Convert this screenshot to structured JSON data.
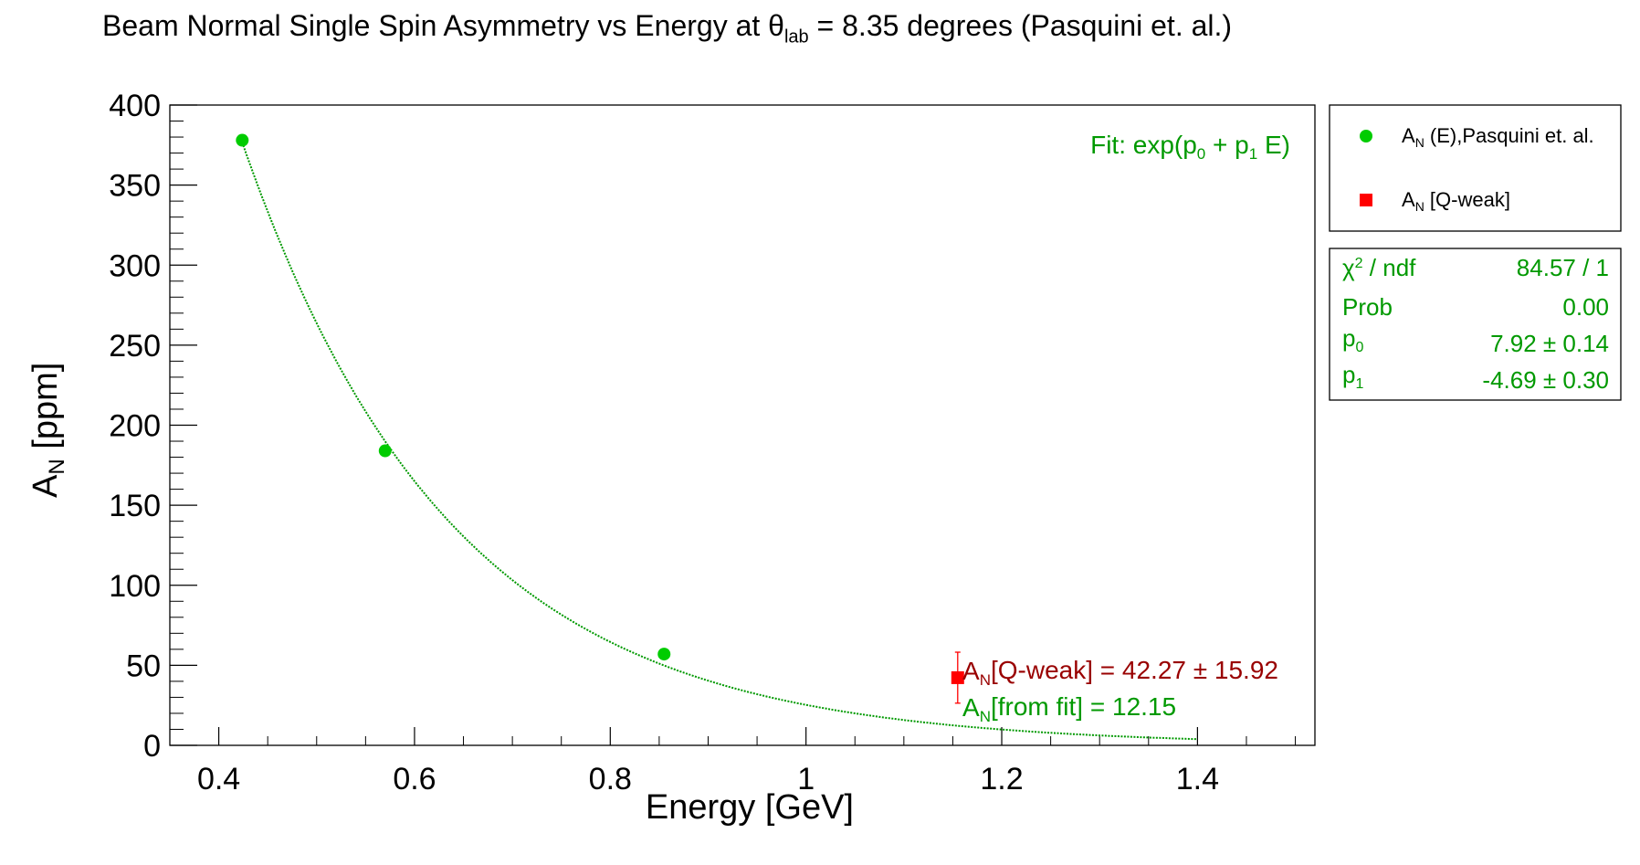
{
  "chart_data": {
    "type": "scatter",
    "title": "Beam Normal Single Spin Asymmetry vs Energy at θlab = 8.35 degrees (Pasquini et. al.)",
    "title_parts": {
      "pre": "Beam Normal Single Spin Asymmetry vs Energy at θ",
      "sub": "lab",
      "post": " = 8.35 degrees (Pasquini et. al.)"
    },
    "xlabel": "Energy [GeV]",
    "ylabel": {
      "main": "A",
      "sub": "N",
      "rest": " [ppm]"
    },
    "xlim": [
      0.35,
      1.52
    ],
    "ylim": [
      0,
      400
    ],
    "x_ticks": [
      0.4,
      0.6,
      0.8,
      1,
      1.2,
      1.4
    ],
    "x_tick_labels": [
      "0.4",
      "0.6",
      "0.8",
      "1",
      "1.2",
      "1.4"
    ],
    "y_ticks": [
      0,
      50,
      100,
      150,
      200,
      250,
      300,
      350,
      400
    ],
    "y_tick_labels": [
      "0",
      "50",
      "100",
      "150",
      "200",
      "250",
      "300",
      "350",
      "400"
    ],
    "grid": false,
    "series": [
      {
        "name": "AN (E),Pasquini et. al.",
        "color": "#00cc00",
        "marker": "circle",
        "points": [
          {
            "x": 0.424,
            "y": 378
          },
          {
            "x": 0.57,
            "y": 184
          },
          {
            "x": 0.855,
            "y": 57
          }
        ]
      },
      {
        "name": "AN [Q-weak]",
        "color": "#ff0000",
        "marker": "square",
        "points": [
          {
            "x": 1.155,
            "y": 42.27,
            "err": 15.92
          }
        ]
      }
    ],
    "fit": {
      "label": "Fit: exp(p0 + p1 E)",
      "label_parts": [
        "Fit: exp(p",
        "0",
        " + p",
        "1",
        " E)"
      ],
      "color": "#009900",
      "p0": 7.92,
      "p1": -4.69,
      "x_range": [
        0.424,
        1.4
      ]
    },
    "legend": {
      "placement": "top-right-outside",
      "entries": [
        {
          "pre": "A",
          "sub": "N",
          "post": " (E),Pasquini et. al.",
          "color": "#00cc00",
          "marker": "circle"
        },
        {
          "pre": "A",
          "sub": "N",
          "post": " [Q-weak]",
          "color": "#ff0000",
          "marker": "square"
        }
      ]
    },
    "stats_box": {
      "color": "#009900",
      "rows": [
        {
          "label": "χ2 / ndf",
          "label_parts": [
            "χ",
            "2",
            " / ndf"
          ],
          "value": "84.57 / 1"
        },
        {
          "label": "Prob",
          "value": "0.00"
        },
        {
          "label": "p0",
          "label_parts": [
            "p",
            "0"
          ],
          "value": "7.92 ± 0.14"
        },
        {
          "label": "p1",
          "label_parts": [
            "p",
            "1"
          ],
          "value": "-4.69 ± 0.30"
        }
      ]
    },
    "annotations": [
      {
        "text": "AN[Q-weak] = 42.27 ± 15.92",
        "pre": "A",
        "sub": "N",
        "post": "[Q-weak] = 42.27 ± 15.92",
        "color": "#990000"
      },
      {
        "text": "AN[from fit] = 12.15",
        "pre": "A",
        "sub": "N",
        "post": "[from fit] = 12.15",
        "color": "#009900"
      }
    ]
  }
}
